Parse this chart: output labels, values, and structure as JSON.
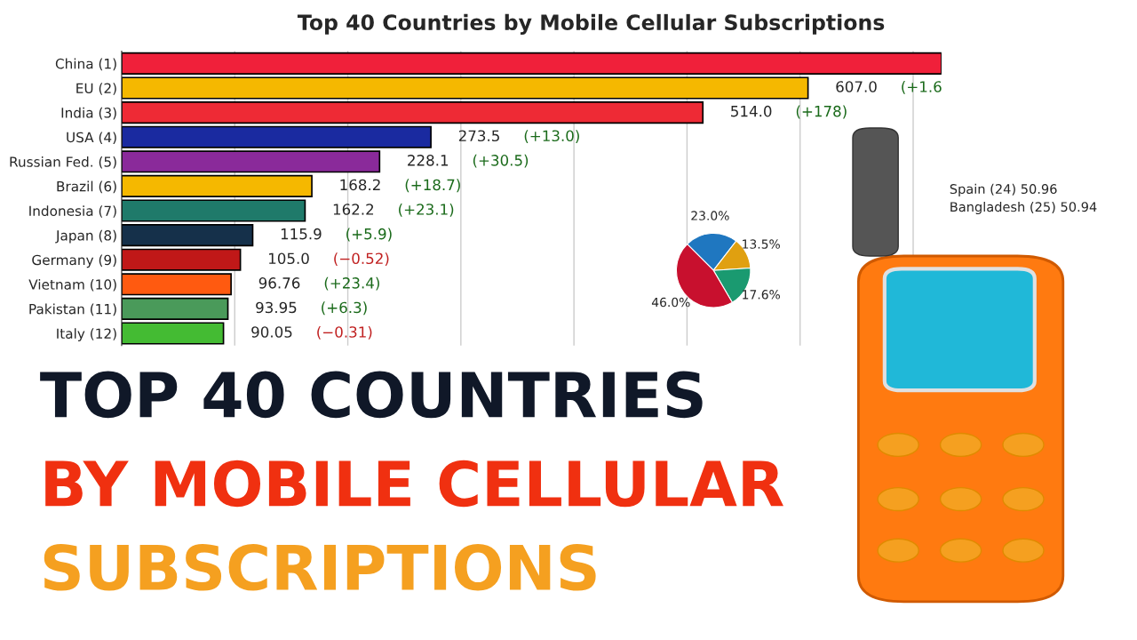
{
  "chart_data": [
    {
      "type": "bar",
      "orientation": "horizontal",
      "title": "Top 40 Countries by Mobile Cellular Subscriptions",
      "categories": [
        "China (1)",
        "EU (2)",
        "India (3)",
        "USA (4)",
        "Russian Fed. (5)",
        "Brazil (6)",
        "Indonesia (7)",
        "Japan (8)",
        "Germany (9)",
        "Vietnam (10)",
        "Pakistan (11)",
        "Italy (12)"
      ],
      "values": [
        725,
        607.0,
        514.0,
        273.5,
        228.1,
        168.2,
        162.2,
        115.9,
        105.0,
        96.76,
        93.95,
        90.05
      ],
      "value_labels": [
        null,
        "607.0",
        "514.0",
        "273.5",
        "228.1",
        "168.2",
        "162.2",
        "115.9",
        "105.0",
        "96.76",
        "93.95",
        "90.05"
      ],
      "colors": [
        "#f0203a",
        "#f5b800",
        "#ee2a35",
        "#1a2aa0",
        "#8a2a9a",
        "#f5b800",
        "#1f7a6a",
        "#15304a",
        "#c01818",
        "#ff5a10",
        "#4a9a5a",
        "#44bb33"
      ],
      "xlim": [
        0,
        725
      ],
      "xticks": [
        {
          "value": 100,
          "label": null
        },
        {
          "value": 200,
          "label": null
        },
        {
          "value": 300,
          "label": null
        },
        {
          "value": 400,
          "label": null
        },
        {
          "value": 500,
          "label": null
        },
        {
          "value": 600,
          "label": null
        },
        {
          "value": 700,
          "label": null
        }
      ],
      "grid": "x",
      "tick_labels": "y",
      "annotations": [
        "TOP 40 COUNTRIES",
        "BY MOBILE CELLULAR",
        "SUBSCRIPTIONS",
        "Spain (24) 50.96",
        "Bangladesh (25) 50.94",
        "(+1.6",
        "(+178)",
        "(+13.0)",
        "(+30.5)",
        "(+18.7)",
        "(+23.1)",
        "(+5.9)",
        "(−0.52)",
        "(+23.4)",
        "(+6.3)",
        "(−0.31)"
      ]
    },
    {
      "type": "pie",
      "categories": [
        null,
        null,
        null,
        null
      ],
      "values": [
        23.0,
        13.5,
        17.6,
        46.0
      ],
      "value_labels": [
        "23.0%",
        "13.5%",
        "17.6%",
        "46.0%"
      ],
      "colors": [
        "#1f77c0",
        "#e0a010",
        "#1a9a70",
        "#c8102e"
      ]
    }
  ]
}
